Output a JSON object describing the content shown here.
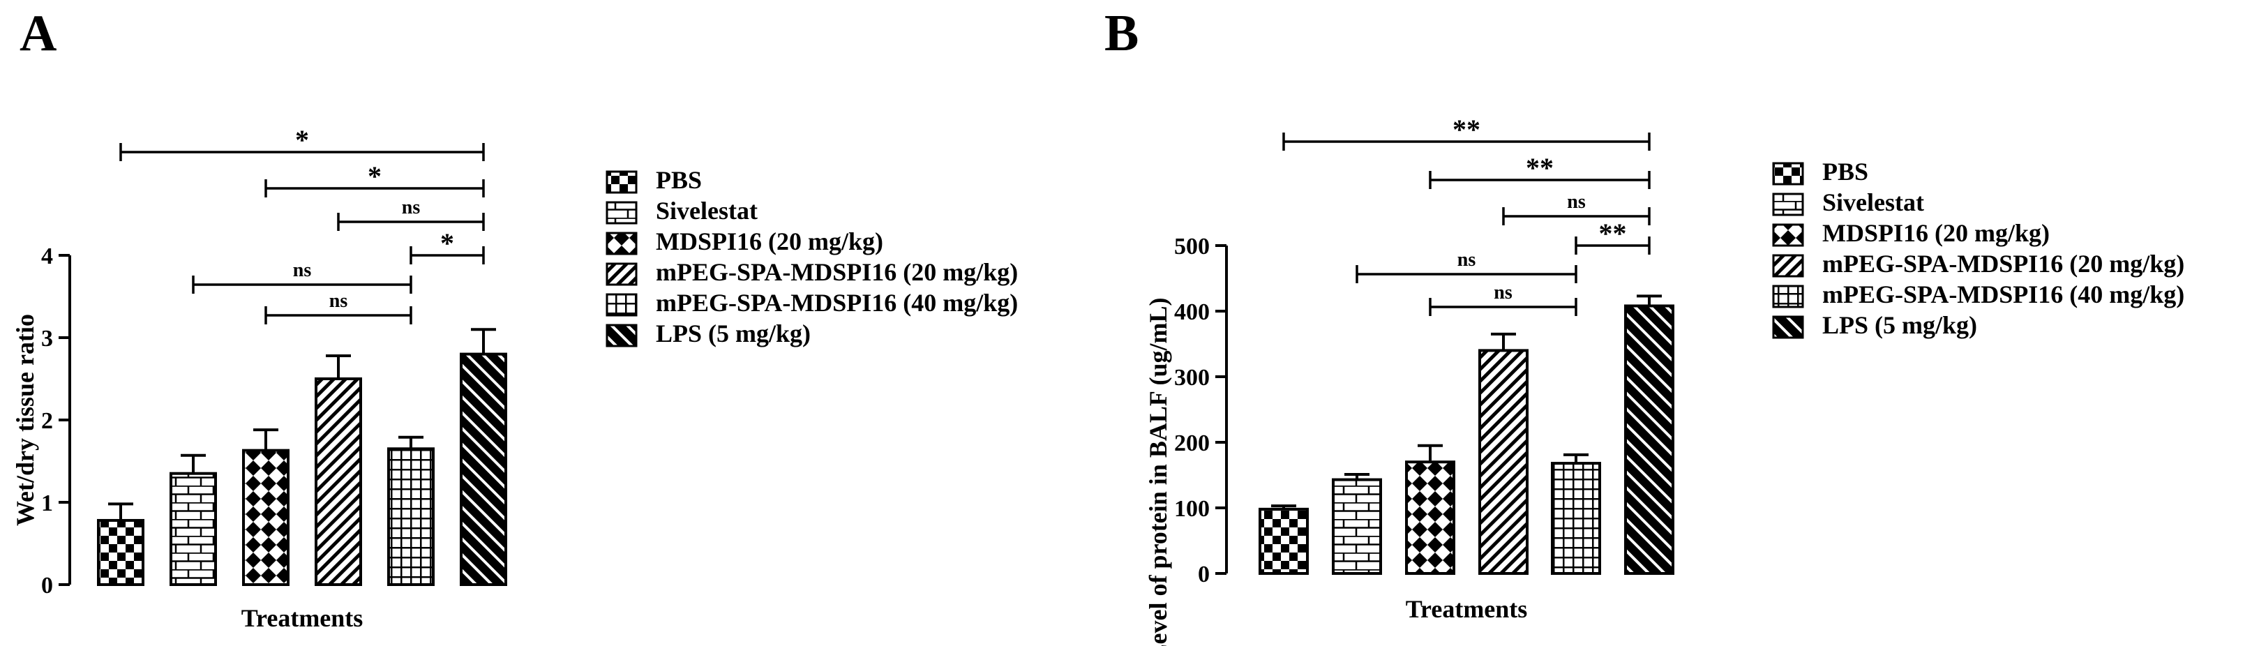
{
  "colors": {
    "ink": "#000000",
    "background": "#ffffff"
  },
  "legend_items": [
    {
      "label": "PBS",
      "pattern": "checker"
    },
    {
      "label": "Sivelestat",
      "pattern": "brick"
    },
    {
      "label": "MDSPI16 (20 mg/kg)",
      "pattern": "diamond"
    },
    {
      "label": "mPEG-SPA-MDSPI16 (20 mg/kg)",
      "pattern": "diagdense"
    },
    {
      "label": "mPEG-SPA-MDSPI16 (40 mg/kg)",
      "pattern": "grid"
    },
    {
      "label": "LPS (5 mg/kg)",
      "pattern": "diagwide"
    }
  ],
  "chart_data": [
    {
      "panel_label": "A",
      "type": "bar",
      "title": "",
      "xlabel": "Treatments",
      "ylabel": "Wet/dry tissue ratio",
      "ylim": [
        0,
        4
      ],
      "yticks": [
        "0",
        "1",
        "2",
        "3",
        "4"
      ],
      "yticks_values": [
        0,
        1,
        2,
        3,
        4
      ],
      "categories": [
        "PBS",
        "Sivelestat",
        "MDSPI16 (20 mg/kg)",
        "mPEG-SPA-MDSPI16 (20 mg/kg)",
        "mPEG-SPA-MDSPI16 (40 mg/kg)",
        "LPS (5 mg/kg)"
      ],
      "values": [
        0.78,
        1.35,
        1.63,
        2.5,
        1.65,
        2.8
      ],
      "errors": [
        0.2,
        0.22,
        0.25,
        0.28,
        0.14,
        0.3
      ],
      "significance": [
        {
          "from": 0,
          "to": 5,
          "label": "*"
        },
        {
          "from": 2,
          "to": 5,
          "label": "*"
        },
        {
          "from": 3,
          "to": 5,
          "label": "ns"
        },
        {
          "from": 4,
          "to": 5,
          "label": "*"
        },
        {
          "from": 1,
          "to": 4,
          "label": "ns"
        },
        {
          "from": 2,
          "to": 4,
          "label": "ns"
        }
      ]
    },
    {
      "panel_label": "B",
      "type": "bar",
      "title": "",
      "xlabel": "Treatments",
      "ylabel": "Level of protein in BALF (ug/mL)",
      "ylim": [
        0,
        500
      ],
      "yticks": [
        "0",
        "100",
        "200",
        "300",
        "400",
        "500"
      ],
      "yticks_values": [
        0,
        100,
        200,
        300,
        400,
        500
      ],
      "categories": [
        "PBS",
        "Sivelestat",
        "MDSPI16 (20 mg/kg)",
        "mPEG-SPA-MDSPI16 (20 mg/kg)",
        "mPEG-SPA-MDSPI16 (40 mg/kg)",
        "LPS (5 mg/kg)"
      ],
      "values": [
        98,
        143,
        170,
        340,
        168,
        408
      ],
      "errors": [
        5,
        8,
        25,
        25,
        13,
        15
      ],
      "significance": [
        {
          "from": 0,
          "to": 5,
          "label": "**"
        },
        {
          "from": 2,
          "to": 5,
          "label": "**"
        },
        {
          "from": 3,
          "to": 5,
          "label": "ns"
        },
        {
          "from": 4,
          "to": 5,
          "label": "**"
        },
        {
          "from": 1,
          "to": 4,
          "label": "ns"
        },
        {
          "from": 2,
          "to": 4,
          "label": "ns"
        }
      ]
    }
  ]
}
